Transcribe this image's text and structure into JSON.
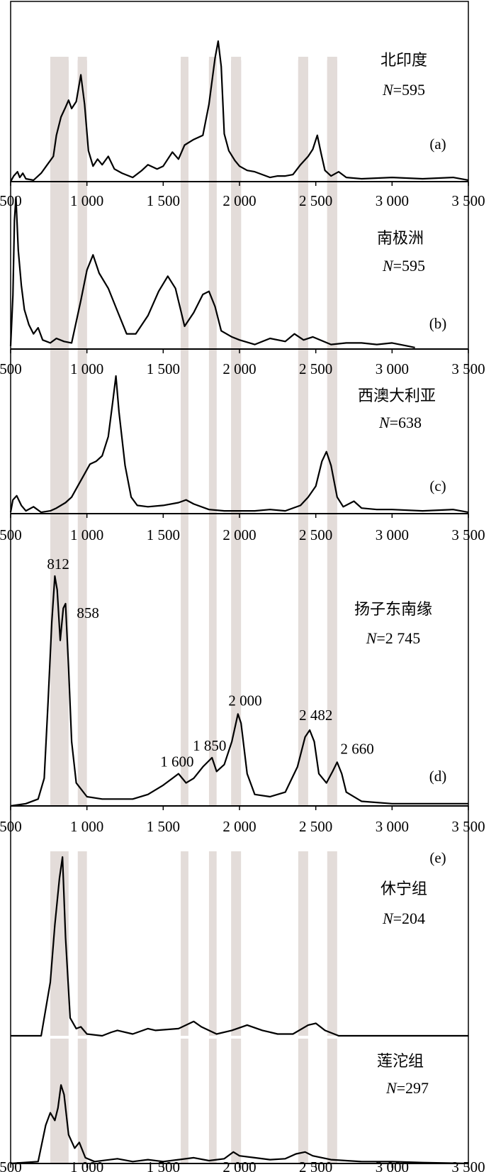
{
  "chart_data": {
    "type": "line",
    "x_range": [
      500,
      3500
    ],
    "x_ticks": [
      500,
      1000,
      1500,
      2000,
      2500,
      3000,
      3500
    ],
    "x_tick_labels": [
      "500",
      "1 000",
      "1 500",
      "2 000",
      "2 500",
      "3 000",
      "3 500"
    ],
    "bands": [
      [
        760,
        880
      ],
      [
        940,
        1000
      ],
      [
        1615,
        1665
      ],
      [
        1800,
        1850
      ],
      [
        1945,
        2010
      ],
      [
        2385,
        2450
      ],
      [
        2575,
        2640
      ]
    ],
    "panels": [
      {
        "title": "北印度",
        "n_prefix": "N",
        "n_value": "=595",
        "tag": "(a)",
        "peaks": [
          [
            500,
            0
          ],
          [
            520,
            0.04
          ],
          [
            545,
            0.07
          ],
          [
            560,
            0.03
          ],
          [
            580,
            0.06
          ],
          [
            600,
            0.02
          ],
          [
            650,
            0.01
          ],
          [
            700,
            0.06
          ],
          [
            740,
            0.12
          ],
          [
            780,
            0.18
          ],
          [
            800,
            0.33
          ],
          [
            830,
            0.46
          ],
          [
            860,
            0.53
          ],
          [
            880,
            0.58
          ],
          [
            900,
            0.52
          ],
          [
            930,
            0.57
          ],
          [
            960,
            0.76
          ],
          [
            985,
            0.55
          ],
          [
            1010,
            0.22
          ],
          [
            1040,
            0.11
          ],
          [
            1070,
            0.16
          ],
          [
            1100,
            0.12
          ],
          [
            1140,
            0.18
          ],
          [
            1180,
            0.09
          ],
          [
            1230,
            0.06
          ],
          [
            1300,
            0.03
          ],
          [
            1360,
            0.08
          ],
          [
            1400,
            0.12
          ],
          [
            1460,
            0.09
          ],
          [
            1500,
            0.11
          ],
          [
            1560,
            0.21
          ],
          [
            1600,
            0.16
          ],
          [
            1640,
            0.26
          ],
          [
            1700,
            0.3
          ],
          [
            1760,
            0.33
          ],
          [
            1800,
            0.55
          ],
          [
            1840,
            0.88
          ],
          [
            1860,
            1.0
          ],
          [
            1880,
            0.82
          ],
          [
            1900,
            0.34
          ],
          [
            1930,
            0.22
          ],
          [
            1970,
            0.15
          ],
          [
            2000,
            0.11
          ],
          [
            2050,
            0.08
          ],
          [
            2100,
            0.07
          ],
          [
            2150,
            0.05
          ],
          [
            2200,
            0.03
          ],
          [
            2250,
            0.04
          ],
          [
            2300,
            0.04
          ],
          [
            2350,
            0.05
          ],
          [
            2400,
            0.12
          ],
          [
            2450,
            0.18
          ],
          [
            2480,
            0.23
          ],
          [
            2510,
            0.33
          ],
          [
            2535,
            0.2
          ],
          [
            2560,
            0.08
          ],
          [
            2600,
            0.04
          ],
          [
            2650,
            0.07
          ],
          [
            2700,
            0.03
          ],
          [
            2800,
            0.02
          ],
          [
            3000,
            0.03
          ],
          [
            3200,
            0.02
          ],
          [
            3400,
            0.03
          ],
          [
            3500,
            0.01
          ]
        ],
        "peak_labels": []
      },
      {
        "title": "南极洲",
        "n_prefix": "N",
        "n_value": "=595",
        "tag": "(b)",
        "peaks": [
          [
            500,
            0.02
          ],
          [
            515,
            0.35
          ],
          [
            525,
            0.85
          ],
          [
            535,
            1.0
          ],
          [
            550,
            0.65
          ],
          [
            570,
            0.42
          ],
          [
            590,
            0.26
          ],
          [
            620,
            0.16
          ],
          [
            650,
            0.1
          ],
          [
            680,
            0.14
          ],
          [
            710,
            0.06
          ],
          [
            760,
            0.04
          ],
          [
            800,
            0.07
          ],
          [
            850,
            0.05
          ],
          [
            900,
            0.04
          ],
          [
            960,
            0.32
          ],
          [
            1000,
            0.52
          ],
          [
            1040,
            0.62
          ],
          [
            1080,
            0.5
          ],
          [
            1140,
            0.4
          ],
          [
            1200,
            0.25
          ],
          [
            1260,
            0.1
          ],
          [
            1320,
            0.1
          ],
          [
            1400,
            0.22
          ],
          [
            1470,
            0.38
          ],
          [
            1530,
            0.48
          ],
          [
            1580,
            0.4
          ],
          [
            1640,
            0.15
          ],
          [
            1700,
            0.24
          ],
          [
            1760,
            0.36
          ],
          [
            1800,
            0.38
          ],
          [
            1840,
            0.28
          ],
          [
            1880,
            0.12
          ],
          [
            1950,
            0.08
          ],
          [
            2000,
            0.06
          ],
          [
            2100,
            0.03
          ],
          [
            2200,
            0.07
          ],
          [
            2300,
            0.05
          ],
          [
            2360,
            0.1
          ],
          [
            2420,
            0.06
          ],
          [
            2480,
            0.08
          ],
          [
            2600,
            0.03
          ],
          [
            2700,
            0.04
          ],
          [
            2800,
            0.04
          ],
          [
            2900,
            0.03
          ],
          [
            3000,
            0.04
          ],
          [
            3100,
            0.02
          ],
          [
            3150,
            0.01
          ]
        ],
        "peak_labels": []
      },
      {
        "title": "西澳大利亚",
        "n_prefix": "N",
        "n_value": "=638",
        "tag": "(c)",
        "peaks": [
          [
            500,
            0.01
          ],
          [
            515,
            0.1
          ],
          [
            540,
            0.13
          ],
          [
            570,
            0.06
          ],
          [
            600,
            0.02
          ],
          [
            650,
            0.05
          ],
          [
            700,
            0.01
          ],
          [
            760,
            0.02
          ],
          [
            800,
            0.04
          ],
          [
            860,
            0.08
          ],
          [
            900,
            0.12
          ],
          [
            940,
            0.2
          ],
          [
            980,
            0.28
          ],
          [
            1020,
            0.36
          ],
          [
            1060,
            0.38
          ],
          [
            1100,
            0.42
          ],
          [
            1140,
            0.56
          ],
          [
            1170,
            0.82
          ],
          [
            1190,
            1.0
          ],
          [
            1210,
            0.74
          ],
          [
            1250,
            0.35
          ],
          [
            1290,
            0.12
          ],
          [
            1330,
            0.06
          ],
          [
            1400,
            0.05
          ],
          [
            1500,
            0.06
          ],
          [
            1600,
            0.08
          ],
          [
            1650,
            0.1
          ],
          [
            1700,
            0.07
          ],
          [
            1800,
            0.03
          ],
          [
            1900,
            0.02
          ],
          [
            2000,
            0.02
          ],
          [
            2100,
            0.02
          ],
          [
            2200,
            0.03
          ],
          [
            2300,
            0.02
          ],
          [
            2400,
            0.06
          ],
          [
            2450,
            0.12
          ],
          [
            2500,
            0.2
          ],
          [
            2540,
            0.38
          ],
          [
            2570,
            0.45
          ],
          [
            2600,
            0.35
          ],
          [
            2640,
            0.12
          ],
          [
            2680,
            0.05
          ],
          [
            2750,
            0.09
          ],
          [
            2800,
            0.04
          ],
          [
            2900,
            0.03
          ],
          [
            3000,
            0.03
          ],
          [
            3200,
            0.02
          ],
          [
            3400,
            0.03
          ],
          [
            3500,
            0.01
          ]
        ],
        "peak_labels": []
      },
      {
        "title": "扬子东南缘",
        "n_prefix": "N",
        "n_value": "=2 745",
        "tag": "(d)",
        "peaks": [
          [
            500,
            0
          ],
          [
            600,
            0.01
          ],
          [
            680,
            0.03
          ],
          [
            720,
            0.12
          ],
          [
            745,
            0.45
          ],
          [
            770,
            0.8
          ],
          [
            790,
            1.0
          ],
          [
            805,
            0.94
          ],
          [
            825,
            0.72
          ],
          [
            845,
            0.86
          ],
          [
            860,
            0.88
          ],
          [
            880,
            0.6
          ],
          [
            900,
            0.28
          ],
          [
            930,
            0.1
          ],
          [
            1000,
            0.04
          ],
          [
            1100,
            0.03
          ],
          [
            1200,
            0.03
          ],
          [
            1300,
            0.03
          ],
          [
            1400,
            0.05
          ],
          [
            1500,
            0.09
          ],
          [
            1560,
            0.12
          ],
          [
            1600,
            0.14
          ],
          [
            1650,
            0.1
          ],
          [
            1700,
            0.12
          ],
          [
            1760,
            0.17
          ],
          [
            1820,
            0.21
          ],
          [
            1850,
            0.15
          ],
          [
            1900,
            0.18
          ],
          [
            1950,
            0.28
          ],
          [
            1990,
            0.4
          ],
          [
            2010,
            0.36
          ],
          [
            2050,
            0.14
          ],
          [
            2100,
            0.05
          ],
          [
            2200,
            0.04
          ],
          [
            2300,
            0.06
          ],
          [
            2380,
            0.17
          ],
          [
            2430,
            0.3
          ],
          [
            2460,
            0.33
          ],
          [
            2490,
            0.28
          ],
          [
            2520,
            0.14
          ],
          [
            2570,
            0.1
          ],
          [
            2610,
            0.15
          ],
          [
            2640,
            0.19
          ],
          [
            2670,
            0.14
          ],
          [
            2700,
            0.06
          ],
          [
            2800,
            0.02
          ],
          [
            3000,
            0.01
          ],
          [
            3200,
            0.01
          ],
          [
            3500,
            0.01
          ]
        ],
        "peak_labels": [
          {
            "x": 812,
            "y": 1.0,
            "text": "812"
          },
          {
            "x": 858,
            "y": 0.88,
            "text": "858"
          },
          {
            "x": 1600,
            "y": 0.14,
            "text": "1 600"
          },
          {
            "x": 1850,
            "y": 0.21,
            "text": "1 850"
          },
          {
            "x": 2000,
            "y": 0.4,
            "text": "2 000"
          },
          {
            "x": 2482,
            "y": 0.33,
            "text": "2 482"
          },
          {
            "x": 2660,
            "y": 0.19,
            "text": "2 660"
          }
        ]
      },
      {
        "title": "休宁组",
        "n_prefix": "N",
        "n_value": "=204",
        "tag": "(e)",
        "peaks": [
          [
            500,
            0
          ],
          [
            700,
            0
          ],
          [
            760,
            0.3
          ],
          [
            790,
            0.62
          ],
          [
            820,
            0.88
          ],
          [
            840,
            1.0
          ],
          [
            860,
            0.55
          ],
          [
            890,
            0.1
          ],
          [
            930,
            0.04
          ],
          [
            960,
            0.05
          ],
          [
            1000,
            0.01
          ],
          [
            1100,
            0.0
          ],
          [
            1160,
            0.02
          ],
          [
            1200,
            0.03
          ],
          [
            1300,
            0.01
          ],
          [
            1400,
            0.04
          ],
          [
            1450,
            0.03
          ],
          [
            1600,
            0.04
          ],
          [
            1700,
            0.08
          ],
          [
            1750,
            0.05
          ],
          [
            1850,
            0.01
          ],
          [
            1950,
            0.03
          ],
          [
            2050,
            0.06
          ],
          [
            2150,
            0.03
          ],
          [
            2250,
            0.01
          ],
          [
            2350,
            0.01
          ],
          [
            2450,
            0.06
          ],
          [
            2500,
            0.07
          ],
          [
            2560,
            0.03
          ],
          [
            2650,
            0
          ],
          [
            3500,
            0
          ]
        ],
        "peak_labels": []
      },
      {
        "title": "莲沱组",
        "n_prefix": "N",
        "n_value": "=297",
        "tag": "",
        "peaks": [
          [
            500,
            0
          ],
          [
            680,
            0.02
          ],
          [
            730,
            0.4
          ],
          [
            760,
            0.53
          ],
          [
            790,
            0.45
          ],
          [
            810,
            0.58
          ],
          [
            830,
            0.82
          ],
          [
            850,
            0.72
          ],
          [
            880,
            0.3
          ],
          [
            920,
            0.16
          ],
          [
            950,
            0.22
          ],
          [
            990,
            0.06
          ],
          [
            1050,
            0.02
          ],
          [
            1200,
            0.05
          ],
          [
            1300,
            0.02
          ],
          [
            1400,
            0.04
          ],
          [
            1500,
            0.02
          ],
          [
            1600,
            0.04
          ],
          [
            1700,
            0.06
          ],
          [
            1800,
            0.03
          ],
          [
            1900,
            0.05
          ],
          [
            1960,
            0.12
          ],
          [
            2000,
            0.08
          ],
          [
            2100,
            0.06
          ],
          [
            2200,
            0.04
          ],
          [
            2300,
            0.05
          ],
          [
            2370,
            0.1
          ],
          [
            2430,
            0.12
          ],
          [
            2480,
            0.08
          ],
          [
            2600,
            0.04
          ],
          [
            2700,
            0.03
          ],
          [
            2800,
            0.02
          ],
          [
            3000,
            0.02
          ],
          [
            3200,
            0.01
          ],
          [
            3500,
            0
          ]
        ],
        "peak_labels": []
      }
    ]
  }
}
